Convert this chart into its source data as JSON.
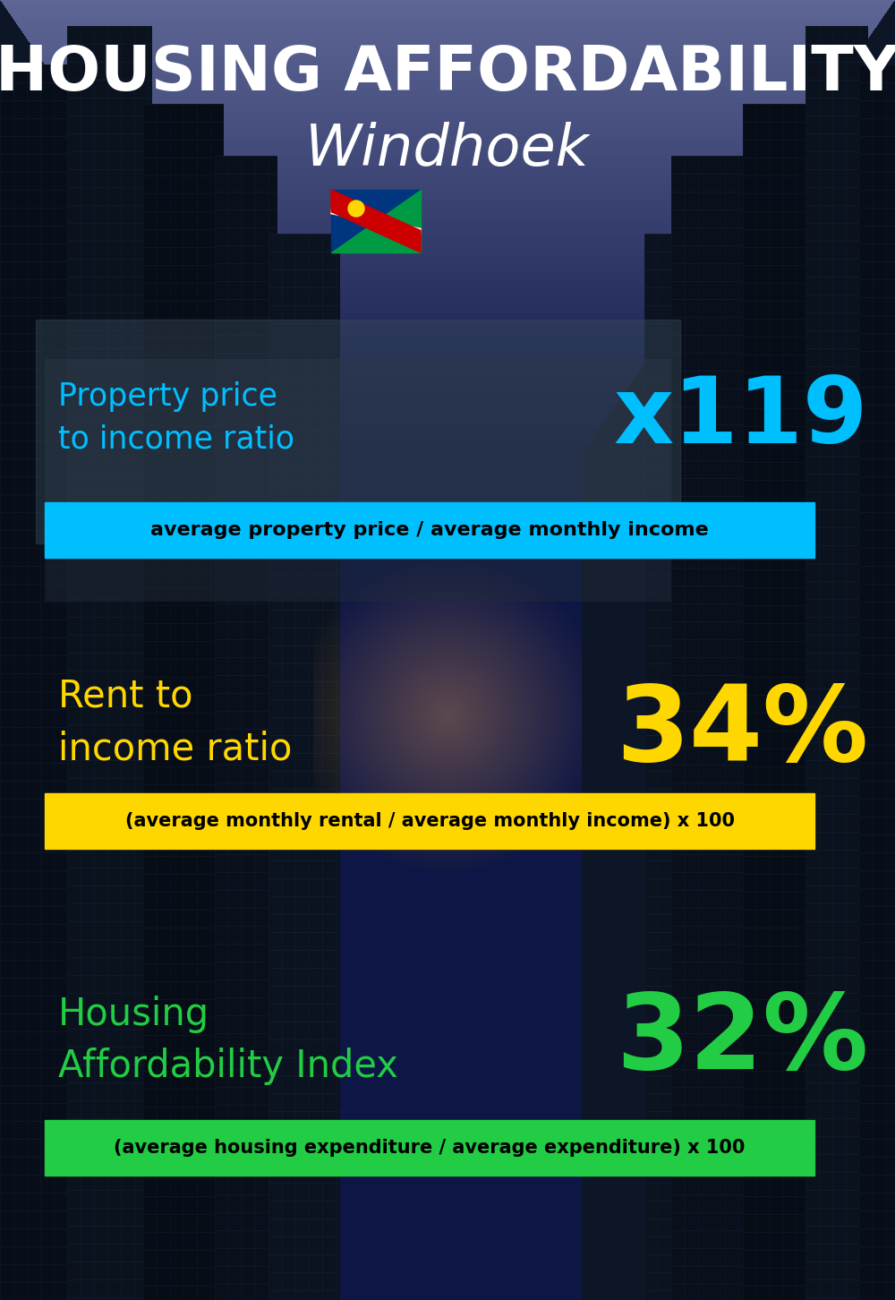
{
  "title_line1": "HOUSING AFFORDABILITY",
  "title_line2": "Windhoek",
  "section1_label": "Property price\nto income ratio",
  "section1_value": "x119",
  "section1_label_color": "#00BFFF",
  "section1_value_color": "#00BFFF",
  "section1_formula": "average property price / average monthly income",
  "section1_formula_bg": "#00BFFF",
  "section1_formula_color": "#000000",
  "section2_label": "Rent to\nincome ratio",
  "section2_value": "34%",
  "section2_label_color": "#FFD700",
  "section2_value_color": "#FFD700",
  "section2_formula": "(average monthly rental / average monthly income) x 100",
  "section2_formula_bg": "#FFD700",
  "section2_formula_color": "#000000",
  "section3_label": "Housing\nAffordability Index",
  "section3_value": "32%",
  "section3_label_color": "#22CC44",
  "section3_value_color": "#22CC44",
  "section3_formula": "(average housing expenditure / average expenditure) x 100",
  "section3_formula_bg": "#22CC44",
  "section3_formula_color": "#000000",
  "bg_color": "#0a1422",
  "title_color": "#FFFFFF",
  "subtitle_color": "#FFFFFF"
}
